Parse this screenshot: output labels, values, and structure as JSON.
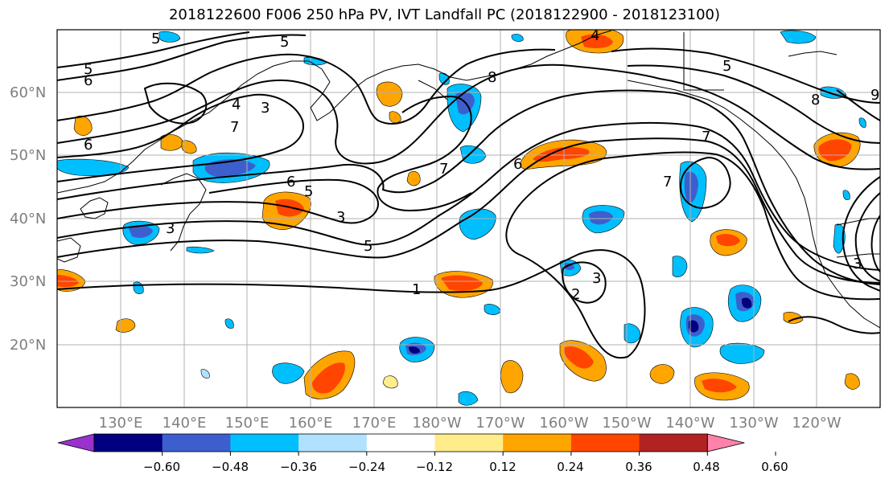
{
  "title": "2018122600 F006 250 hPa PV, IVT Landfall PC (2018122900 - 2018123100)",
  "lat_labels": [
    "60°N",
    "50°N",
    "40°N",
    "30°N",
    "20°N"
  ],
  "lon_labels": [
    "130°E",
    "140°E",
    "150°E",
    "160°E",
    "170°E",
    "180°W",
    "170°W",
    "160°W",
    "150°W",
    "140°W",
    "130°W",
    "120°W"
  ],
  "contour_labels": [
    "5",
    "6",
    "4",
    "3",
    "5",
    "7",
    "6",
    "5",
    "6",
    "7",
    "5",
    "6",
    "7",
    "8",
    "4",
    "5",
    "7",
    "8",
    "3",
    "3",
    "3",
    "5",
    "1",
    "2",
    "3",
    "9"
  ],
  "colorbar": {
    "tick_labels": [
      "−0.60",
      "−0.48",
      "−0.36",
      "−0.24",
      "−0.12",
      "0.12",
      "0.24",
      "0.36",
      "0.48",
      "0.60"
    ],
    "colors": [
      "#9932cc",
      "#000080",
      "#3d5fcd",
      "#00bfff",
      "#b0e2ff",
      "#ffffff",
      "#ffec8b",
      "#ffa500",
      "#ff4500",
      "#b22222",
      "#ff82ab"
    ]
  }
}
